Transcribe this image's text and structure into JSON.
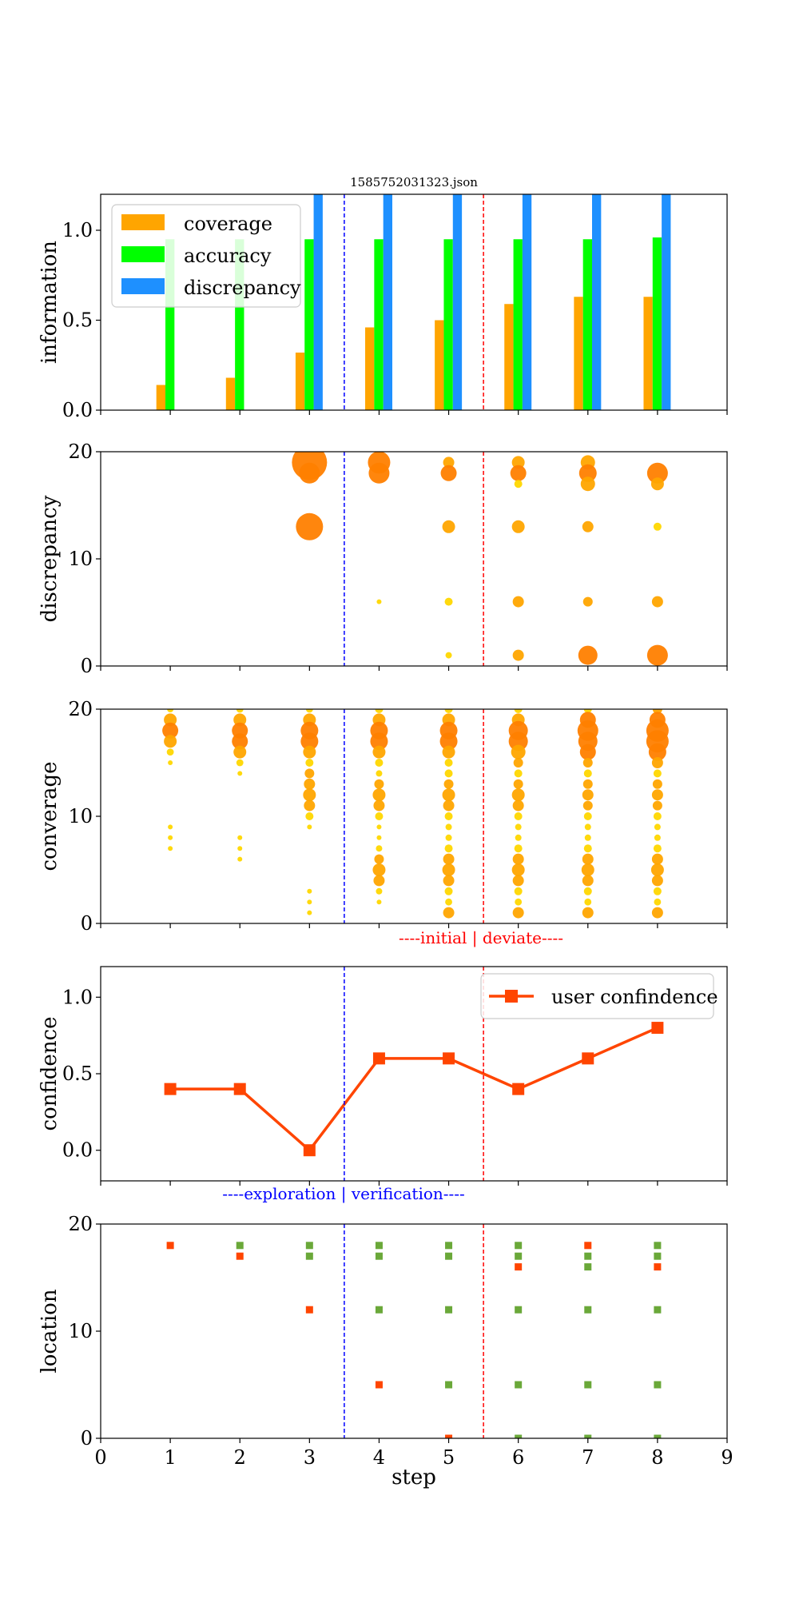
{
  "figure_title": "1585752031323.json",
  "xlabel": "step",
  "colors": {
    "coverage": "#FFA500",
    "accuracy": "#00FF00",
    "discrepancy": "#1E90FF",
    "confidence": "#FF4500",
    "loc_green": "#6AA839",
    "loc_red": "#FF4500",
    "bubble_large": "#FF7F00",
    "bubble_mid": "#FFA500",
    "bubble_small": "#FFD700",
    "exploration_line": "#0000FF",
    "deviate_line": "#FF0000"
  },
  "annotations": {
    "initial_deviate": "----initial | deviate----",
    "exploration_verification": "----exploration | verification----"
  },
  "vlines": {
    "exploration_verification": 3.5,
    "initial_deviate": 5.5
  },
  "chart_data": [
    {
      "type": "bar",
      "name": "information",
      "ylabel": "information",
      "xlim": [
        0,
        9
      ],
      "ylim": [
        0,
        1.2
      ],
      "yticks": [
        0.0,
        0.5,
        1.0
      ],
      "legend_position": "top-left",
      "categories": [
        1,
        2,
        3,
        4,
        5,
        6,
        7,
        8
      ],
      "series": [
        {
          "name": "coverage",
          "values": [
            0.14,
            0.18,
            0.32,
            0.46,
            0.5,
            0.59,
            0.63,
            0.63
          ]
        },
        {
          "name": "accuracy",
          "values": [
            0.95,
            0.95,
            0.95,
            0.95,
            0.95,
            0.95,
            0.95,
            0.96
          ]
        },
        {
          "name": "discrepancy",
          "values": [
            0.0,
            0.0,
            1.2,
            1.2,
            1.2,
            1.2,
            1.2,
            1.2
          ]
        }
      ]
    },
    {
      "type": "scatter",
      "name": "discrepancy",
      "ylabel": "discrepancy",
      "xlim": [
        0,
        9
      ],
      "ylim": [
        0,
        20
      ],
      "yticks": [
        0,
        10,
        20
      ],
      "points": [
        {
          "x": 3,
          "y": 19,
          "size": 1.0
        },
        {
          "x": 3,
          "y": 18,
          "size": 0.55
        },
        {
          "x": 3,
          "y": 13,
          "size": 0.75
        },
        {
          "x": 4,
          "y": 19,
          "size": 0.6
        },
        {
          "x": 4,
          "y": 18,
          "size": 0.55
        },
        {
          "x": 4,
          "y": 6,
          "size": 0.05
        },
        {
          "x": 5,
          "y": 19,
          "size": 0.25
        },
        {
          "x": 5,
          "y": 18,
          "size": 0.4
        },
        {
          "x": 5,
          "y": 13,
          "size": 0.3
        },
        {
          "x": 5,
          "y": 6,
          "size": 0.15
        },
        {
          "x": 5,
          "y": 1,
          "size": 0.1
        },
        {
          "x": 6,
          "y": 19,
          "size": 0.3
        },
        {
          "x": 6,
          "y": 18,
          "size": 0.4
        },
        {
          "x": 6,
          "y": 17,
          "size": 0.15
        },
        {
          "x": 6,
          "y": 13,
          "size": 0.3
        },
        {
          "x": 6,
          "y": 6,
          "size": 0.25
        },
        {
          "x": 6,
          "y": 1,
          "size": 0.25
        },
        {
          "x": 7,
          "y": 19,
          "size": 0.35
        },
        {
          "x": 7,
          "y": 18,
          "size": 0.45
        },
        {
          "x": 7,
          "y": 17,
          "size": 0.35
        },
        {
          "x": 7,
          "y": 13,
          "size": 0.25
        },
        {
          "x": 7,
          "y": 6,
          "size": 0.2
        },
        {
          "x": 7,
          "y": 1,
          "size": 0.5
        },
        {
          "x": 8,
          "y": 18,
          "size": 0.55
        },
        {
          "x": 8,
          "y": 17,
          "size": 0.3
        },
        {
          "x": 8,
          "y": 13,
          "size": 0.15
        },
        {
          "x": 8,
          "y": 6,
          "size": 0.25
        },
        {
          "x": 8,
          "y": 1,
          "size": 0.55
        }
      ]
    },
    {
      "type": "scatter",
      "name": "converage",
      "ylabel": "converage",
      "xlim": [
        0,
        9
      ],
      "ylim": [
        0,
        20
      ],
      "yticks": [
        0,
        10,
        20
      ],
      "points": [
        {
          "x": 1,
          "y": 21,
          "size": 0.05
        },
        {
          "x": 1,
          "y": 20,
          "size": 0.1
        },
        {
          "x": 1,
          "y": 19,
          "size": 0.3
        },
        {
          "x": 1,
          "y": 18,
          "size": 0.4
        },
        {
          "x": 1,
          "y": 17,
          "size": 0.3
        },
        {
          "x": 1,
          "y": 16,
          "size": 0.12
        },
        {
          "x": 1,
          "y": 15,
          "size": 0.05
        },
        {
          "x": 1,
          "y": 9,
          "size": 0.05
        },
        {
          "x": 1,
          "y": 8,
          "size": 0.05
        },
        {
          "x": 1,
          "y": 7,
          "size": 0.05
        },
        {
          "x": 2,
          "y": 21,
          "size": 0.05
        },
        {
          "x": 2,
          "y": 20,
          "size": 0.12
        },
        {
          "x": 2,
          "y": 19,
          "size": 0.3
        },
        {
          "x": 2,
          "y": 18,
          "size": 0.4
        },
        {
          "x": 2,
          "y": 17,
          "size": 0.4
        },
        {
          "x": 2,
          "y": 16,
          "size": 0.3
        },
        {
          "x": 2,
          "y": 15,
          "size": 0.12
        },
        {
          "x": 2,
          "y": 14,
          "size": 0.05
        },
        {
          "x": 2,
          "y": 8,
          "size": 0.05
        },
        {
          "x": 2,
          "y": 7,
          "size": 0.05
        },
        {
          "x": 2,
          "y": 6,
          "size": 0.05
        },
        {
          "x": 3,
          "y": 21,
          "size": 0.05
        },
        {
          "x": 3,
          "y": 20,
          "size": 0.12
        },
        {
          "x": 3,
          "y": 19,
          "size": 0.3
        },
        {
          "x": 3,
          "y": 18,
          "size": 0.45
        },
        {
          "x": 3,
          "y": 17,
          "size": 0.45
        },
        {
          "x": 3,
          "y": 16,
          "size": 0.3
        },
        {
          "x": 3,
          "y": 15,
          "size": 0.15
        },
        {
          "x": 3,
          "y": 14,
          "size": 0.2
        },
        {
          "x": 3,
          "y": 13,
          "size": 0.25
        },
        {
          "x": 3,
          "y": 12,
          "size": 0.3
        },
        {
          "x": 3,
          "y": 11,
          "size": 0.25
        },
        {
          "x": 3,
          "y": 10,
          "size": 0.15
        },
        {
          "x": 3,
          "y": 9,
          "size": 0.05
        },
        {
          "x": 3,
          "y": 3,
          "size": 0.05
        },
        {
          "x": 3,
          "y": 2,
          "size": 0.05
        },
        {
          "x": 3,
          "y": 1,
          "size": 0.05
        },
        {
          "x": 4,
          "y": 21,
          "size": 0.05
        },
        {
          "x": 4,
          "y": 20,
          "size": 0.15
        },
        {
          "x": 4,
          "y": 19,
          "size": 0.3
        },
        {
          "x": 4,
          "y": 18,
          "size": 0.45
        },
        {
          "x": 4,
          "y": 17,
          "size": 0.45
        },
        {
          "x": 4,
          "y": 16,
          "size": 0.3
        },
        {
          "x": 4,
          "y": 15,
          "size": 0.15
        },
        {
          "x": 4,
          "y": 14,
          "size": 0.1
        },
        {
          "x": 4,
          "y": 13,
          "size": 0.2
        },
        {
          "x": 4,
          "y": 12,
          "size": 0.3
        },
        {
          "x": 4,
          "y": 11,
          "size": 0.25
        },
        {
          "x": 4,
          "y": 10,
          "size": 0.15
        },
        {
          "x": 4,
          "y": 9,
          "size": 0.05
        },
        {
          "x": 4,
          "y": 8,
          "size": 0.05
        },
        {
          "x": 4,
          "y": 7,
          "size": 0.1
        },
        {
          "x": 4,
          "y": 6,
          "size": 0.2
        },
        {
          "x": 4,
          "y": 5,
          "size": 0.3
        },
        {
          "x": 4,
          "y": 4,
          "size": 0.25
        },
        {
          "x": 4,
          "y": 3,
          "size": 0.1
        },
        {
          "x": 4,
          "y": 2,
          "size": 0.05
        },
        {
          "x": 5,
          "y": 21,
          "size": 0.05
        },
        {
          "x": 5,
          "y": 20,
          "size": 0.15
        },
        {
          "x": 5,
          "y": 19,
          "size": 0.3
        },
        {
          "x": 5,
          "y": 18,
          "size": 0.45
        },
        {
          "x": 5,
          "y": 17,
          "size": 0.45
        },
        {
          "x": 5,
          "y": 16,
          "size": 0.3
        },
        {
          "x": 5,
          "y": 15,
          "size": 0.15
        },
        {
          "x": 5,
          "y": 14,
          "size": 0.15
        },
        {
          "x": 5,
          "y": 13,
          "size": 0.2
        },
        {
          "x": 5,
          "y": 12,
          "size": 0.3
        },
        {
          "x": 5,
          "y": 11,
          "size": 0.25
        },
        {
          "x": 5,
          "y": 10,
          "size": 0.15
        },
        {
          "x": 5,
          "y": 9,
          "size": 0.1
        },
        {
          "x": 5,
          "y": 8,
          "size": 0.1
        },
        {
          "x": 5,
          "y": 7,
          "size": 0.15
        },
        {
          "x": 5,
          "y": 6,
          "size": 0.25
        },
        {
          "x": 5,
          "y": 5,
          "size": 0.3
        },
        {
          "x": 5,
          "y": 4,
          "size": 0.25
        },
        {
          "x": 5,
          "y": 3,
          "size": 0.15
        },
        {
          "x": 5,
          "y": 2,
          "size": 0.12
        },
        {
          "x": 5,
          "y": 1,
          "size": 0.25
        },
        {
          "x": 6,
          "y": 21,
          "size": 0.05
        },
        {
          "x": 6,
          "y": 20,
          "size": 0.15
        },
        {
          "x": 6,
          "y": 19,
          "size": 0.3
        },
        {
          "x": 6,
          "y": 18,
          "size": 0.5
        },
        {
          "x": 6,
          "y": 17,
          "size": 0.5
        },
        {
          "x": 6,
          "y": 16,
          "size": 0.35
        },
        {
          "x": 6,
          "y": 15,
          "size": 0.2
        },
        {
          "x": 6,
          "y": 14,
          "size": 0.15
        },
        {
          "x": 6,
          "y": 13,
          "size": 0.2
        },
        {
          "x": 6,
          "y": 12,
          "size": 0.3
        },
        {
          "x": 6,
          "y": 11,
          "size": 0.25
        },
        {
          "x": 6,
          "y": 10,
          "size": 0.15
        },
        {
          "x": 6,
          "y": 9,
          "size": 0.1
        },
        {
          "x": 6,
          "y": 8,
          "size": 0.1
        },
        {
          "x": 6,
          "y": 7,
          "size": 0.15
        },
        {
          "x": 6,
          "y": 6,
          "size": 0.25
        },
        {
          "x": 6,
          "y": 5,
          "size": 0.3
        },
        {
          "x": 6,
          "y": 4,
          "size": 0.25
        },
        {
          "x": 6,
          "y": 3,
          "size": 0.15
        },
        {
          "x": 6,
          "y": 2,
          "size": 0.12
        },
        {
          "x": 6,
          "y": 1,
          "size": 0.25
        },
        {
          "x": 7,
          "y": 21,
          "size": 0.05
        },
        {
          "x": 7,
          "y": 20,
          "size": 0.15
        },
        {
          "x": 7,
          "y": 19,
          "size": 0.4
        },
        {
          "x": 7,
          "y": 18,
          "size": 0.55
        },
        {
          "x": 7,
          "y": 17,
          "size": 0.5
        },
        {
          "x": 7,
          "y": 16,
          "size": 0.4
        },
        {
          "x": 7,
          "y": 15,
          "size": 0.2
        },
        {
          "x": 7,
          "y": 14,
          "size": 0.15
        },
        {
          "x": 7,
          "y": 13,
          "size": 0.2
        },
        {
          "x": 7,
          "y": 12,
          "size": 0.25
        },
        {
          "x": 7,
          "y": 11,
          "size": 0.2
        },
        {
          "x": 7,
          "y": 10,
          "size": 0.15
        },
        {
          "x": 7,
          "y": 9,
          "size": 0.1
        },
        {
          "x": 7,
          "y": 8,
          "size": 0.1
        },
        {
          "x": 7,
          "y": 7,
          "size": 0.15
        },
        {
          "x": 7,
          "y": 6,
          "size": 0.25
        },
        {
          "x": 7,
          "y": 5,
          "size": 0.3
        },
        {
          "x": 7,
          "y": 4,
          "size": 0.25
        },
        {
          "x": 7,
          "y": 3,
          "size": 0.15
        },
        {
          "x": 7,
          "y": 2,
          "size": 0.12
        },
        {
          "x": 7,
          "y": 1,
          "size": 0.25
        },
        {
          "x": 8,
          "y": 21,
          "size": 0.05
        },
        {
          "x": 8,
          "y": 20,
          "size": 0.2
        },
        {
          "x": 8,
          "y": 19,
          "size": 0.4
        },
        {
          "x": 8,
          "y": 18,
          "size": 0.6
        },
        {
          "x": 8,
          "y": 17,
          "size": 0.6
        },
        {
          "x": 8,
          "y": 16,
          "size": 0.45
        },
        {
          "x": 8,
          "y": 15,
          "size": 0.25
        },
        {
          "x": 8,
          "y": 14,
          "size": 0.15
        },
        {
          "x": 8,
          "y": 13,
          "size": 0.2
        },
        {
          "x": 8,
          "y": 12,
          "size": 0.25
        },
        {
          "x": 8,
          "y": 11,
          "size": 0.2
        },
        {
          "x": 8,
          "y": 10,
          "size": 0.15
        },
        {
          "x": 8,
          "y": 9,
          "size": 0.1
        },
        {
          "x": 8,
          "y": 8,
          "size": 0.1
        },
        {
          "x": 8,
          "y": 7,
          "size": 0.15
        },
        {
          "x": 8,
          "y": 6,
          "size": 0.25
        },
        {
          "x": 8,
          "y": 5,
          "size": 0.3
        },
        {
          "x": 8,
          "y": 4,
          "size": 0.25
        },
        {
          "x": 8,
          "y": 3,
          "size": 0.15
        },
        {
          "x": 8,
          "y": 2,
          "size": 0.12
        },
        {
          "x": 8,
          "y": 1,
          "size": 0.25
        }
      ]
    },
    {
      "type": "line",
      "name": "confidence",
      "ylabel": "confidence",
      "xlim": [
        0,
        9
      ],
      "ylim": [
        -0.2,
        1.2
      ],
      "yticks": [
        0.0,
        0.5,
        1.0
      ],
      "legend_position": "top-right",
      "series": [
        {
          "name": "user confindence",
          "x": [
            1,
            2,
            3,
            4,
            5,
            6,
            7,
            8
          ],
          "values": [
            0.4,
            0.4,
            0.0,
            0.6,
            0.6,
            0.4,
            0.6,
            0.8
          ]
        }
      ]
    },
    {
      "type": "scatter",
      "name": "location",
      "ylabel": "location",
      "xlim": [
        0,
        9
      ],
      "ylim": [
        0,
        20
      ],
      "yticks": [
        0,
        10,
        20
      ],
      "xticks": [
        0,
        1,
        2,
        3,
        4,
        5,
        6,
        7,
        8,
        9
      ],
      "points": [
        {
          "x": 1,
          "y": 18,
          "status": "red"
        },
        {
          "x": 2,
          "y": 18,
          "status": "green"
        },
        {
          "x": 2,
          "y": 17,
          "status": "red"
        },
        {
          "x": 3,
          "y": 18,
          "status": "green"
        },
        {
          "x": 3,
          "y": 17,
          "status": "green"
        },
        {
          "x": 3,
          "y": 12,
          "status": "red"
        },
        {
          "x": 4,
          "y": 18,
          "status": "green"
        },
        {
          "x": 4,
          "y": 17,
          "status": "green"
        },
        {
          "x": 4,
          "y": 12,
          "status": "green"
        },
        {
          "x": 4,
          "y": 5,
          "status": "red"
        },
        {
          "x": 5,
          "y": 18,
          "status": "green"
        },
        {
          "x": 5,
          "y": 17,
          "status": "green"
        },
        {
          "x": 5,
          "y": 12,
          "status": "green"
        },
        {
          "x": 5,
          "y": 5,
          "status": "green"
        },
        {
          "x": 5,
          "y": 0,
          "status": "red"
        },
        {
          "x": 6,
          "y": 18,
          "status": "green"
        },
        {
          "x": 6,
          "y": 17,
          "status": "green"
        },
        {
          "x": 6,
          "y": 16,
          "status": "red"
        },
        {
          "x": 6,
          "y": 12,
          "status": "green"
        },
        {
          "x": 6,
          "y": 5,
          "status": "green"
        },
        {
          "x": 6,
          "y": 0,
          "status": "green"
        },
        {
          "x": 7,
          "y": 18,
          "status": "red"
        },
        {
          "x": 7,
          "y": 17,
          "status": "green"
        },
        {
          "x": 7,
          "y": 16,
          "status": "green"
        },
        {
          "x": 7,
          "y": 12,
          "status": "green"
        },
        {
          "x": 7,
          "y": 5,
          "status": "green"
        },
        {
          "x": 7,
          "y": 0,
          "status": "green"
        },
        {
          "x": 8,
          "y": 18,
          "status": "green"
        },
        {
          "x": 8,
          "y": 17,
          "status": "green"
        },
        {
          "x": 8,
          "y": 16,
          "status": "red"
        },
        {
          "x": 8,
          "y": 12,
          "status": "green"
        },
        {
          "x": 8,
          "y": 5,
          "status": "green"
        },
        {
          "x": 8,
          "y": 0,
          "status": "green"
        }
      ]
    }
  ]
}
